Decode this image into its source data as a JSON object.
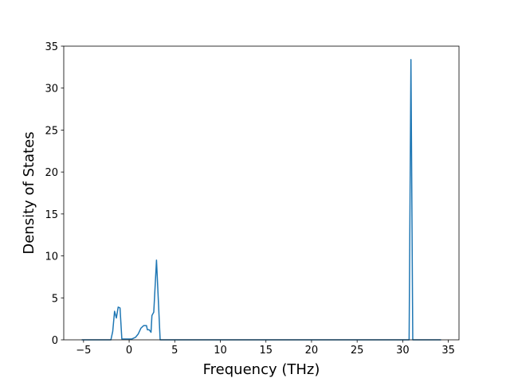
{
  "chart_data": {
    "type": "line",
    "xlabel": "Frequency (THz)",
    "ylabel": "Density of States",
    "x": [
      -5.2,
      -2.0,
      -1.8,
      -1.6,
      -1.4,
      -1.2,
      -1.0,
      -0.8,
      -0.3,
      0.3,
      0.7,
      1.0,
      1.3,
      1.6,
      1.9,
      2.0,
      2.2,
      2.4,
      2.5,
      2.7,
      3.0,
      3.4,
      30.5,
      30.7,
      30.9,
      31.1,
      34.2
    ],
    "values": [
      0,
      0,
      1.0,
      3.4,
      2.6,
      3.9,
      3.8,
      0.1,
      0.1,
      0.1,
      0.3,
      0.7,
      1.4,
      1.7,
      1.7,
      1.2,
      1.2,
      0.9,
      2.9,
      3.3,
      9.5,
      0,
      0,
      0,
      33.4,
      0,
      0
    ],
    "color": "#1f77b4",
    "xlim": [
      -7.17,
      36.17
    ],
    "xticks": [
      {
        "value": -5,
        "label": "−5"
      },
      0,
      5,
      10,
      15,
      20,
      25,
      30,
      35
    ],
    "ylim": [
      0,
      35
    ],
    "yticks": [
      0,
      5,
      10,
      15,
      20,
      25,
      30,
      35
    ]
  }
}
